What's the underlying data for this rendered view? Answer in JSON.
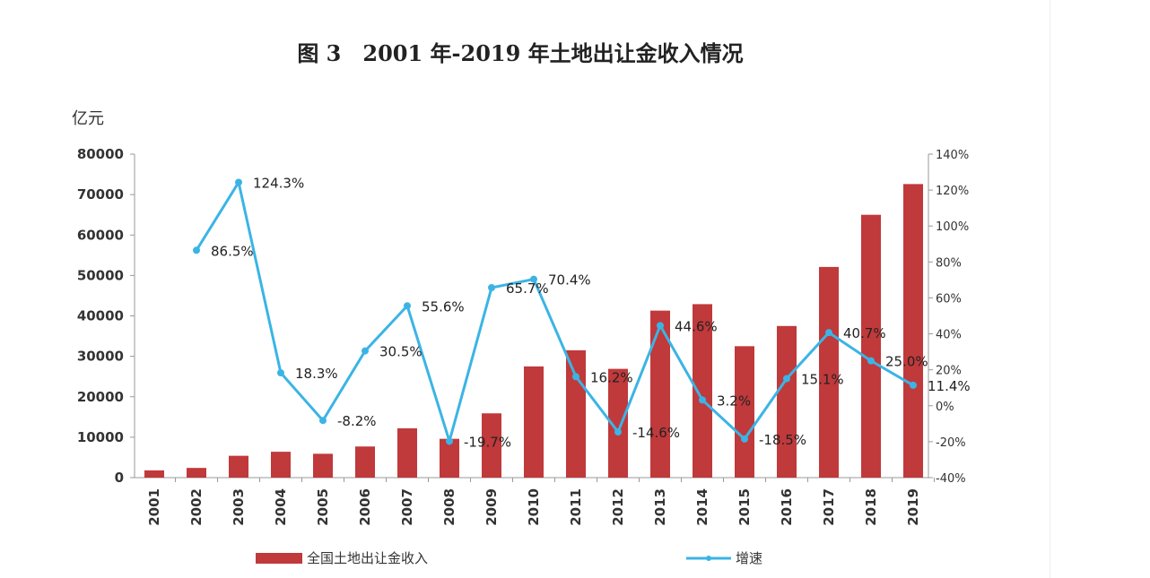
{
  "chart_data": {
    "type": "bar+line",
    "title": "图 3　2001 年-2019 年土地出让金收入情况",
    "ylabel": "亿元",
    "ylim": [
      0,
      80000
    ],
    "y2lim": [
      -40,
      140
    ],
    "yticks": [
      "0",
      "10000",
      "20000",
      "30000",
      "40000",
      "50000",
      "60000",
      "70000",
      "80000"
    ],
    "y2ticks": [
      "-40%",
      "-20%",
      "0%",
      "20%",
      "40%",
      "60%",
      "80%",
      "100%",
      "120%",
      "140%"
    ],
    "categories": [
      "2001",
      "2002",
      "2003",
      "2004",
      "2005",
      "2006",
      "2007",
      "2008",
      "2009",
      "2010",
      "2011",
      "2012",
      "2013",
      "2014",
      "2015",
      "2016",
      "2017",
      "2018",
      "2019"
    ],
    "series": [
      {
        "name": "全国土地出让金收入",
        "type": "bar",
        "axis": "left",
        "color": "#c0393b",
        "values": [
          1800,
          2400,
          5400,
          6400,
          5900,
          7700,
          12200,
          9600,
          15900,
          27500,
          31500,
          26900,
          41300,
          42900,
          32500,
          37500,
          52100,
          65000,
          72600
        ]
      },
      {
        "name": "增速",
        "type": "line",
        "axis": "right",
        "color": "#3bb4e5",
        "values": [
          null,
          86.5,
          124.3,
          18.3,
          -8.2,
          30.5,
          55.6,
          -19.7,
          65.7,
          70.4,
          16.2,
          -14.6,
          44.6,
          3.2,
          -18.5,
          15.1,
          40.7,
          25.0,
          11.4
        ],
        "labels": [
          "",
          "86.5%",
          "124.3%",
          "18.3%",
          "-8.2%",
          "30.5%",
          "55.6%",
          "-19.7%",
          "65.7%",
          "70.4%",
          "16.2%",
          "-14.6%",
          "44.6%",
          "3.2%",
          "-18.5%",
          "15.1%",
          "40.7%",
          "25.0%",
          "11.4%"
        ]
      }
    ],
    "legend": "bottom",
    "grid": false
  }
}
